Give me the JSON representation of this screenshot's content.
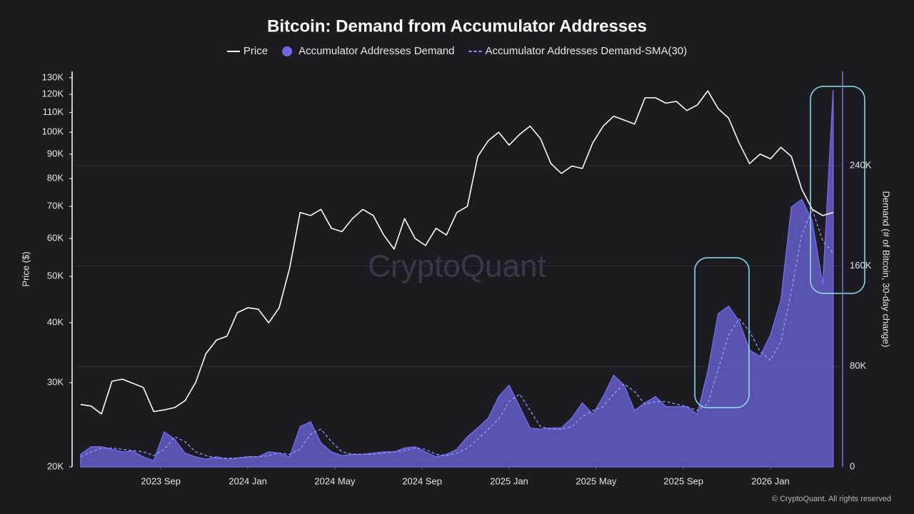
{
  "chart_data": {
    "type": "line",
    "title": "Bitcoin: Demand from Accumulator Addresses",
    "ylabel": "Price ($)",
    "y2label": "Demand (# of Bitcoin, 30-day change)",
    "watermark": "CryptoQuant",
    "footer": "© CryptoQuant. All rights reserved",
    "ylog": true,
    "grid": true,
    "legend": "top",
    "xlim": [
      2023.344,
      2026.276
    ],
    "xticks": [
      {
        "value": 2023.667,
        "label": "2023 Sep"
      },
      {
        "value": 2024.0,
        "label": "2024 Jan"
      },
      {
        "value": 2024.333,
        "label": "2024 May"
      },
      {
        "value": 2024.667,
        "label": "2024 Sep"
      },
      {
        "value": 2025.0,
        "label": "2025 Jan"
      },
      {
        "value": 2025.333,
        "label": "2025 May"
      },
      {
        "value": 2025.667,
        "label": "2025 Sep"
      },
      {
        "value": 2026.0,
        "label": "2026 Jan"
      }
    ],
    "ylim": [
      20000,
      134000
    ],
    "yticks": [
      {
        "value": 20000,
        "label": "20K"
      },
      {
        "value": 30000,
        "label": "30K"
      },
      {
        "value": 40000,
        "label": "40K"
      },
      {
        "value": 50000,
        "label": "50K"
      },
      {
        "value": 60000,
        "label": "60K"
      },
      {
        "value": 70000,
        "label": "70K"
      },
      {
        "value": 80000,
        "label": "80K"
      },
      {
        "value": 90000,
        "label": "90K"
      },
      {
        "value": 100000,
        "label": "100K"
      },
      {
        "value": 110000,
        "label": "110K"
      },
      {
        "value": 120000,
        "label": "120K"
      },
      {
        "value": 130000,
        "label": "130K"
      }
    ],
    "y2lim": [
      0,
      315000
    ],
    "y2ticks": [
      0,
      {
        "value": 80000,
        "label": "80K"
      },
      {
        "value": 160000,
        "label": "160K"
      },
      {
        "value": 240000,
        "label": "240K"
      }
    ],
    "x": [
      2023.36,
      2023.4,
      2023.44,
      2023.48,
      2023.52,
      2023.56,
      2023.6,
      2023.64,
      2023.68,
      2023.72,
      2023.76,
      2023.8,
      2023.84,
      2023.88,
      2023.92,
      2023.96,
      2024.0,
      2024.04,
      2024.08,
      2024.12,
      2024.16,
      2024.2,
      2024.24,
      2024.28,
      2024.32,
      2024.36,
      2024.4,
      2024.44,
      2024.48,
      2024.52,
      2024.56,
      2024.6,
      2024.64,
      2024.68,
      2024.72,
      2024.76,
      2024.8,
      2024.84,
      2024.88,
      2024.92,
      2024.96,
      2025.0,
      2025.04,
      2025.08,
      2025.12,
      2025.16,
      2025.2,
      2025.24,
      2025.28,
      2025.32,
      2025.36,
      2025.4,
      2025.44,
      2025.48,
      2025.52,
      2025.56,
      2025.6,
      2025.64,
      2025.68,
      2025.72,
      2025.76,
      2025.8,
      2025.84,
      2025.88,
      2025.92,
      2025.96,
      2026.0,
      2026.04,
      2026.08,
      2026.12,
      2026.16,
      2026.2,
      2026.24
    ],
    "series": [
      {
        "name": "Accumulator Addresses Demand",
        "kind": "area",
        "axis": "y2",
        "color": "#6f68e0",
        "values": [
          10000,
          16000,
          16000,
          14000,
          12000,
          12500,
          8000,
          5000,
          28000,
          22000,
          11000,
          8000,
          6000,
          8000,
          6000,
          7000,
          8000,
          8000,
          12000,
          11000,
          8000,
          32000,
          36000,
          19000,
          12000,
          9000,
          10000,
          10000,
          11000,
          12000,
          12000,
          15000,
          16000,
          12000,
          8000,
          10000,
          14000,
          24000,
          31000,
          39000,
          56000,
          65000,
          48000,
          31000,
          30000,
          31000,
          31000,
          39000,
          51000,
          42000,
          56000,
          73000,
          65000,
          45000,
          51000,
          56000,
          48000,
          48000,
          48000,
          42000,
          76000,
          122000,
          128000,
          116000,
          93000,
          88000,
          105000,
          133000,
          207000,
          213000,
          196000,
          145000,
          300000
        ]
      },
      {
        "name": "Accumulator Addresses Demand-SMA(30)",
        "kind": "dashed",
        "axis": "y2",
        "color": "#9a93ff",
        "values": [
          8000,
          12000,
          15000,
          15000,
          14000,
          13000,
          12000,
          9000,
          14000,
          24000,
          20000,
          12000,
          9000,
          7000,
          7000,
          7000,
          8000,
          8000,
          9000,
          11000,
          10000,
          14000,
          26000,
          30000,
          20000,
          12000,
          10000,
          10000,
          10000,
          11000,
          12000,
          13000,
          15000,
          14000,
          10000,
          9000,
          11000,
          15000,
          22000,
          30000,
          38000,
          52000,
          58000,
          45000,
          32000,
          30000,
          30000,
          32000,
          40000,
          45000,
          48000,
          58000,
          66000,
          60000,
          50000,
          52000,
          52000,
          50000,
          48000,
          45000,
          50000,
          78000,
          105000,
          118000,
          108000,
          92000,
          85000,
          100000,
          140000,
          185000,
          205000,
          180000,
          170000
        ]
      },
      {
        "name": "Price",
        "kind": "line",
        "color": "#ffffff",
        "values": [
          27000,
          26800,
          25800,
          30200,
          30500,
          29900,
          29300,
          26100,
          26300,
          26600,
          27500,
          30000,
          34500,
          36800,
          37500,
          42000,
          43000,
          42700,
          40000,
          43000,
          52000,
          68000,
          67000,
          69000,
          63000,
          62000,
          66000,
          69000,
          67000,
          61000,
          57000,
          66000,
          60000,
          58000,
          63000,
          61000,
          68000,
          70000,
          89000,
          96000,
          100000,
          94000,
          99000,
          103000,
          97000,
          86000,
          82000,
          85000,
          84000,
          95000,
          103000,
          108000,
          106000,
          104000,
          118000,
          118000,
          115000,
          116000,
          111000,
          114000,
          122000,
          112000,
          107000,
          95000,
          86000,
          90000,
          88000,
          93000,
          89000,
          76000,
          69000,
          67000,
          68000
        ]
      }
    ]
  }
}
